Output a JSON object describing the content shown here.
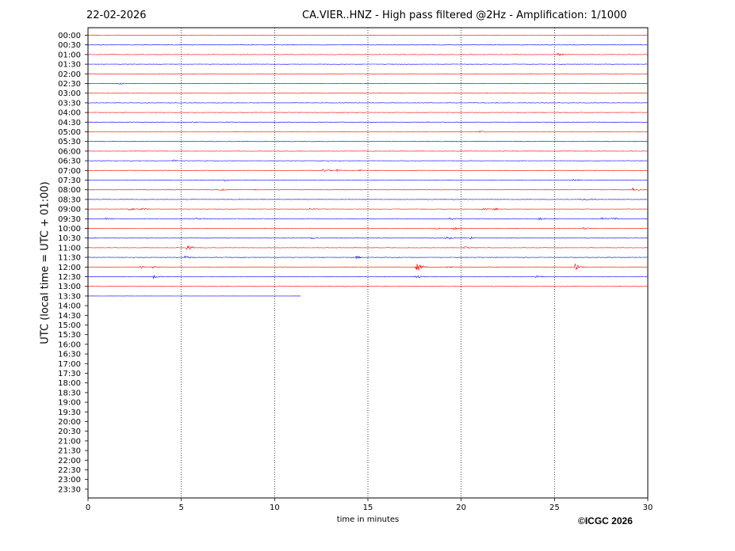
{
  "header": {
    "date": "22-02-2026",
    "title": "CA.VIER..HNZ - High pass filtered @2Hz - Amplification: 1/1000"
  },
  "footer": {
    "copyright": "©ICGC 2026"
  },
  "chart_data": {
    "type": "line",
    "title": "CA.VIER..HNZ - High pass filtered @2Hz - Amplification: 1/1000",
    "xlabel": "time in minutes",
    "ylabel": "UTC (local time = UTC + 01:00)",
    "xlim": [
      0,
      30
    ],
    "xticks": [
      0,
      5,
      10,
      15,
      20,
      25,
      30
    ],
    "grid": "vertical dotted lines at x ticks",
    "colors": {
      "even_rows": "#ff0000",
      "odd_rows": "#0000ff"
    },
    "rows": [
      "00:00",
      "00:30",
      "01:00",
      "01:30",
      "02:00",
      "02:30",
      "03:00",
      "03:30",
      "04:00",
      "04:30",
      "05:00",
      "05:30",
      "06:00",
      "06:30",
      "07:00",
      "07:30",
      "08:00",
      "08:30",
      "09:00",
      "09:30",
      "10:00",
      "10:30",
      "11:00",
      "11:30",
      "12:00",
      "12:30",
      "13:00",
      "13:30",
      "14:00",
      "14:30",
      "15:00",
      "15:30",
      "16:00",
      "16:30",
      "17:00",
      "17:30",
      "18:00",
      "18:30",
      "19:00",
      "19:30",
      "20:00",
      "20:30",
      "21:00",
      "21:30",
      "22:00",
      "22:30",
      "23:00",
      "23:30"
    ],
    "traces_recorded_until": {
      "row": "13:30",
      "minute": 11.4
    },
    "events": [
      {
        "row": "01:00",
        "minute": 25.2,
        "amp": 0.35
      },
      {
        "row": "02:30",
        "minute": 1.7,
        "amp": 0.25
      },
      {
        "row": "05:00",
        "minute": 21.0,
        "amp": 0.3
      },
      {
        "row": "06:30",
        "minute": 4.6,
        "amp": 0.25
      },
      {
        "row": "07:00",
        "minute": 12.6,
        "amp": 0.35
      },
      {
        "row": "07:00",
        "minute": 13.3,
        "amp": 0.25
      },
      {
        "row": "07:00",
        "minute": 14.5,
        "amp": 0.3
      },
      {
        "row": "07:30",
        "minute": 7.3,
        "amp": 0.25
      },
      {
        "row": "07:30",
        "minute": 26.0,
        "amp": 0.3
      },
      {
        "row": "08:00",
        "minute": 7.1,
        "amp": 0.25
      },
      {
        "row": "08:00",
        "minute": 8.8,
        "amp": 0.2
      },
      {
        "row": "08:00",
        "minute": 29.2,
        "amp": 0.45
      },
      {
        "row": "08:30",
        "minute": 26.4,
        "amp": 0.3
      },
      {
        "row": "08:30",
        "minute": 27.0,
        "amp": 0.25
      },
      {
        "row": "09:00",
        "minute": 2.2,
        "amp": 0.45
      },
      {
        "row": "09:00",
        "minute": 2.9,
        "amp": 0.3
      },
      {
        "row": "09:00",
        "minute": 11.8,
        "amp": 0.25
      },
      {
        "row": "09:00",
        "minute": 21.1,
        "amp": 0.35
      },
      {
        "row": "09:00",
        "minute": 21.8,
        "amp": 0.3
      },
      {
        "row": "09:30",
        "minute": 0.8,
        "amp": 0.3
      },
      {
        "row": "09:30",
        "minute": 5.8,
        "amp": 0.2
      },
      {
        "row": "09:30",
        "minute": 19.4,
        "amp": 0.3
      },
      {
        "row": "09:30",
        "minute": 24.2,
        "amp": 0.35
      },
      {
        "row": "09:30",
        "minute": 27.5,
        "amp": 0.3
      },
      {
        "row": "09:30",
        "minute": 28.1,
        "amp": 0.3
      },
      {
        "row": "10:00",
        "minute": 18.6,
        "amp": 0.25
      },
      {
        "row": "10:00",
        "minute": 19.6,
        "amp": 0.3
      },
      {
        "row": "10:00",
        "minute": 26.5,
        "amp": 0.3
      },
      {
        "row": "10:30",
        "minute": 12.0,
        "amp": 0.2
      },
      {
        "row": "10:30",
        "minute": 19.2,
        "amp": 0.5
      },
      {
        "row": "10:30",
        "minute": 20.5,
        "amp": 0.3
      },
      {
        "row": "11:00",
        "minute": 5.3,
        "amp": 0.9
      },
      {
        "row": "11:00",
        "minute": 20.2,
        "amp": 0.3
      },
      {
        "row": "11:30",
        "minute": 5.2,
        "amp": 0.35
      },
      {
        "row": "11:30",
        "minute": 14.4,
        "amp": 0.35
      },
      {
        "row": "12:00",
        "minute": 2.8,
        "amp": 0.35
      },
      {
        "row": "12:00",
        "minute": 3.5,
        "amp": 0.3
      },
      {
        "row": "12:00",
        "minute": 17.6,
        "amp": 1.7
      },
      {
        "row": "12:00",
        "minute": 19.3,
        "amp": 0.3
      },
      {
        "row": "12:00",
        "minute": 26.1,
        "amp": 1.0
      },
      {
        "row": "12:30",
        "minute": 3.5,
        "amp": 0.45
      },
      {
        "row": "12:30",
        "minute": 17.6,
        "amp": 0.4
      },
      {
        "row": "12:30",
        "minute": 24.0,
        "amp": 0.35
      }
    ]
  }
}
